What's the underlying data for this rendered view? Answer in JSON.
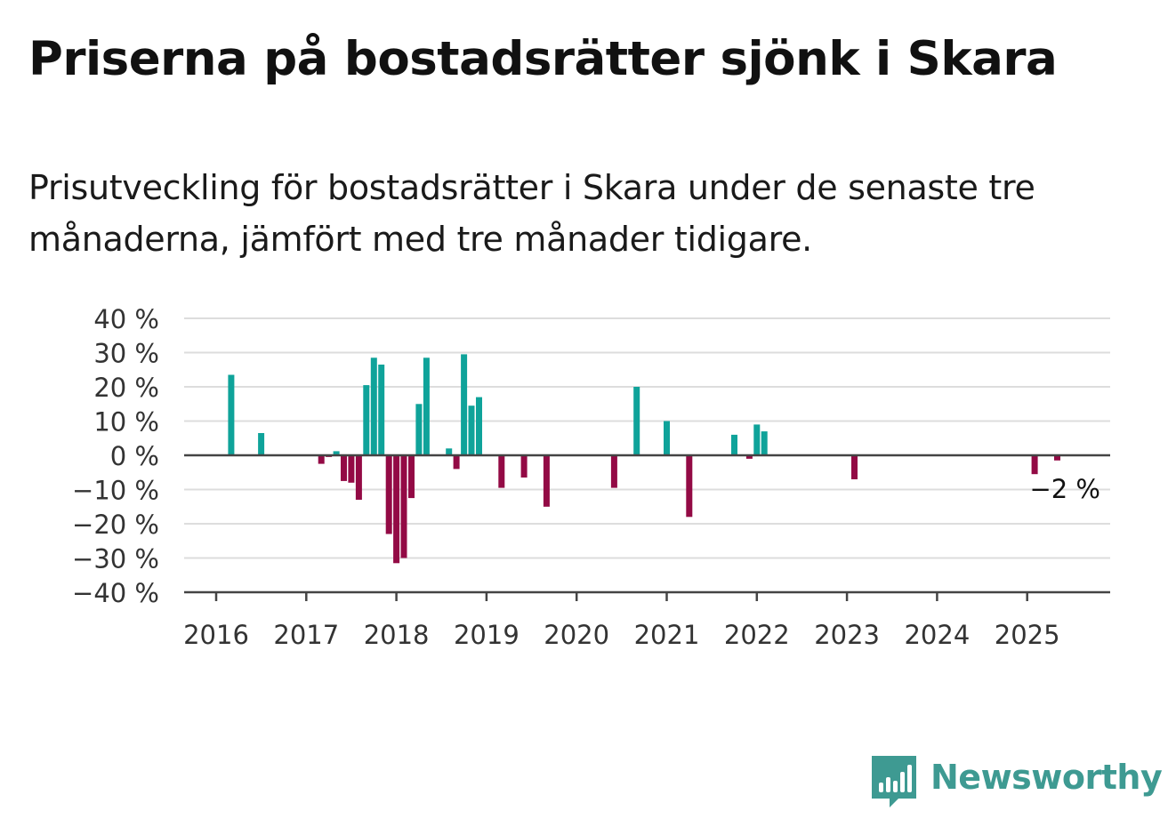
{
  "title": "Priserna på bostadsrätter sjönk i Skara",
  "subtitle": "Prisutveckling för bostadsrätter i Skara under de senaste tre månaderna, jämfört med tre månader tidigare.",
  "logo": {
    "text": "Newsworthy",
    "icon": "newsworthy-bar-chart-speech-bubble-icon",
    "color": "#3e9a92"
  },
  "chart_data": {
    "type": "bar",
    "ylim": [
      -40,
      40
    ],
    "ytick_values": [
      40,
      30,
      20,
      10,
      0,
      -10,
      -20,
      -30,
      -40
    ],
    "ytick_labels": [
      "40 %",
      "30 %",
      "20 %",
      "10 %",
      "0 %",
      "−10 %",
      "−20 %",
      "−30 %",
      "−40 %"
    ],
    "xtick_labels": [
      "2016",
      "2017",
      "2018",
      "2019",
      "2020",
      "2021",
      "2022",
      "2023",
      "2024",
      "2025"
    ],
    "grid": true,
    "colors": {
      "positive": "#0fa39a",
      "negative": "#930a45",
      "grid": "#dddddd",
      "axis": "#444444"
    },
    "annotation": {
      "text": "−2 %",
      "date": "2025-06"
    },
    "points": [
      {
        "date": "2016-03",
        "value": 23.5
      },
      {
        "date": "2016-07",
        "value": 6.5
      },
      {
        "date": "2017-03",
        "value": -2.5
      },
      {
        "date": "2017-04",
        "value": -0.5
      },
      {
        "date": "2017-05",
        "value": 1.2
      },
      {
        "date": "2017-06",
        "value": -7.5
      },
      {
        "date": "2017-07",
        "value": -8
      },
      {
        "date": "2017-08",
        "value": -13
      },
      {
        "date": "2017-09",
        "value": 20.5
      },
      {
        "date": "2017-10",
        "value": 28.5
      },
      {
        "date": "2017-11",
        "value": 26.5
      },
      {
        "date": "2017-12",
        "value": -23
      },
      {
        "date": "2018-01",
        "value": -31.5
      },
      {
        "date": "2018-02",
        "value": -30
      },
      {
        "date": "2018-03",
        "value": -12.5
      },
      {
        "date": "2018-04",
        "value": 15
      },
      {
        "date": "2018-05",
        "value": 28.5
      },
      {
        "date": "2018-08",
        "value": 2
      },
      {
        "date": "2018-09",
        "value": -4
      },
      {
        "date": "2018-10",
        "value": 29.5
      },
      {
        "date": "2018-11",
        "value": 14.5
      },
      {
        "date": "2018-12",
        "value": 17
      },
      {
        "date": "2019-03",
        "value": -9.5
      },
      {
        "date": "2019-06",
        "value": -6.5
      },
      {
        "date": "2019-09",
        "value": -15
      },
      {
        "date": "2020-06",
        "value": -9.5
      },
      {
        "date": "2020-09",
        "value": 20
      },
      {
        "date": "2021-01",
        "value": 10
      },
      {
        "date": "2021-04",
        "value": -18
      },
      {
        "date": "2021-10",
        "value": 6
      },
      {
        "date": "2021-12",
        "value": -1
      },
      {
        "date": "2022-01",
        "value": 9
      },
      {
        "date": "2022-02",
        "value": 7
      },
      {
        "date": "2023-02",
        "value": -7
      },
      {
        "date": "2025-02",
        "value": -5.5
      },
      {
        "date": "2025-05",
        "value": -1.5
      }
    ]
  }
}
